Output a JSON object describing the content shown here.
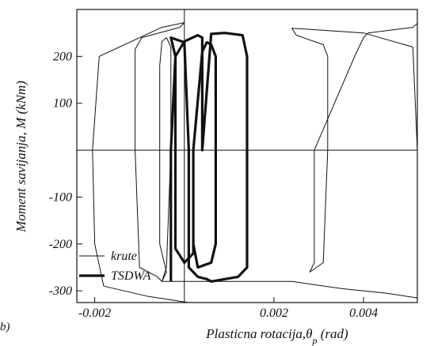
{
  "chart_data": {
    "type": "line",
    "panel_label": "b)",
    "xlabel": "Plasticna rotacija,θ",
    "xlabel_sub": "p",
    "xlabel_unit": " (rad)",
    "ylabel": "Moment savijanja, M (kNm)",
    "xlim": [
      -0.0024,
      0.0052
    ],
    "ylim": [
      -325,
      300
    ],
    "x_ticks": [
      {
        "value": -0.002,
        "label": "-0.002"
      },
      {
        "value": 0.002,
        "label": "0.002"
      },
      {
        "value": 0.004,
        "label": "0.004"
      }
    ],
    "y_ticks": [
      {
        "value": 200,
        "label": "200"
      },
      {
        "value": 100,
        "label": "100"
      },
      {
        "value": -100,
        "label": "-100"
      },
      {
        "value": -200,
        "label": "-200"
      },
      {
        "value": -300,
        "label": "-300"
      }
    ],
    "grid": false,
    "legend_position": "bottom-left",
    "series": [
      {
        "name": "krute",
        "style": "thin",
        "x": [
          0.0002,
          0.0001,
          -0.0008,
          -0.0018,
          -0.002,
          -0.00205,
          -0.0019,
          -0.0005,
          0.0,
          -0.0001,
          -0.00095,
          -0.0011,
          -0.0011,
          -0.001,
          -0.0006,
          -0.0005,
          -0.0004,
          -0.00055,
          -0.00055,
          -0.0005,
          -0.0004,
          -0.0003,
          -0.0003,
          -0.0004,
          -0.0005,
          0.0024,
          0.0035,
          0.0045,
          0.0052,
          0.0052,
          0.0051,
          0.004,
          0.0024,
          0.0025,
          0.0031,
          0.0032,
          0.0032,
          0.0031,
          0.0028,
          0.0029,
          0.0029,
          0.0038,
          0.004,
          0.0041,
          0.0051,
          0.0052
        ],
        "y": [
          -325,
          -325,
          -312,
          -290,
          -200,
          0,
          200,
          262,
          272,
          262,
          240,
          215,
          0,
          -250,
          -270,
          -280,
          -260,
          -200,
          180,
          232,
          240,
          220,
          0,
          -250,
          -280,
          -280,
          -295,
          -305,
          -315,
          0,
          220,
          250,
          260,
          245,
          225,
          200,
          0,
          -240,
          -260,
          -240,
          0,
          200,
          240,
          250,
          262,
          270
        ]
      },
      {
        "name": "TSDWA",
        "style": "thick",
        "x": [
          -0.0003,
          -0.0003,
          -0.0002,
          0.0,
          0.0003,
          0.0004,
          0.0004,
          0.0006,
          0.0009,
          0.0013,
          0.0014,
          0.0014,
          0.0012,
          0.0006,
          0.0005,
          0.0003,
          0.0001,
          0.0001,
          0.0,
          -0.0003,
          -0.0002,
          -0.0002,
          0.0,
          0.0002,
          0.0002,
          0.0004,
          0.0005,
          0.0006,
          0.0007,
          0.0007,
          0.0006,
          0.0003,
          0.0002
        ],
        "y": [
          -280,
          0,
          200,
          232,
          245,
          240,
          0,
          248,
          250,
          245,
          200,
          -250,
          -270,
          -280,
          -275,
          -270,
          -250,
          0,
          230,
          240,
          200,
          -210,
          -240,
          -220,
          0,
          210,
          230,
          225,
          200,
          -200,
          -240,
          -250,
          -200
        ]
      }
    ]
  }
}
